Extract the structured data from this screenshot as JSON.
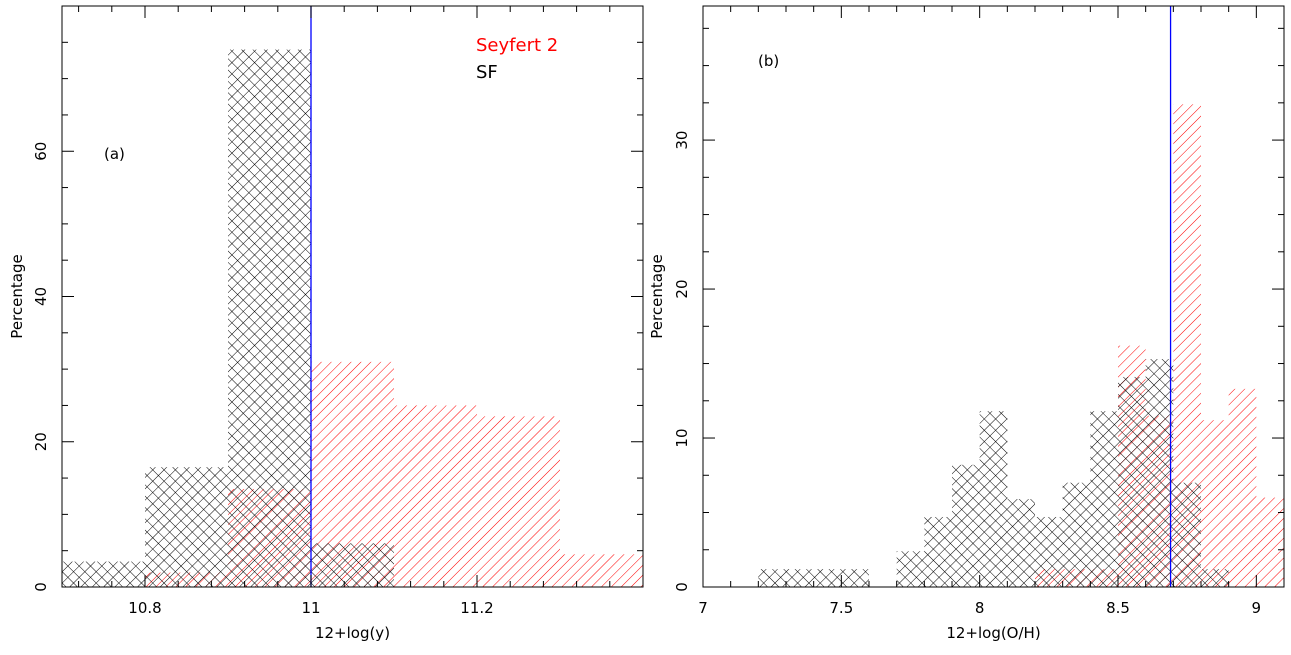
{
  "chart_data": [
    {
      "type": "bar",
      "panel_label": "(a)",
      "xlabel": "12+log(y)",
      "ylabel": "Percentage",
      "xlim": [
        10.7,
        11.4
      ],
      "ylim": [
        0,
        80
      ],
      "xticks": [
        10.8,
        11,
        11.2
      ],
      "xtick_labels": [
        "10.8",
        "11",
        "11.2"
      ],
      "yticks": [
        0,
        20,
        40,
        60
      ],
      "ytick_labels": [
        "0",
        "20",
        "40",
        "60"
      ],
      "vline": 11.0,
      "vline_color": "#0000ff",
      "grid": false,
      "legend_position": "top-right",
      "series": [
        {
          "name": "Seyfert 2",
          "color": "#ff0000",
          "pattern": "hatch",
          "bins": [
            {
              "x0": 10.8,
              "x1": 10.9,
              "value": 2
            },
            {
              "x0": 10.9,
              "x1": 11.0,
              "value": 13.5
            },
            {
              "x0": 11.0,
              "x1": 11.1,
              "value": 31
            },
            {
              "x0": 11.1,
              "x1": 11.2,
              "value": 25
            },
            {
              "x0": 11.2,
              "x1": 11.3,
              "value": 23.5
            },
            {
              "x0": 11.3,
              "x1": 11.4,
              "value": 4.5
            }
          ]
        },
        {
          "name": "SF",
          "color": "#000000",
          "pattern": "crosshatch",
          "bins": [
            {
              "x0": 10.7,
              "x1": 10.8,
              "value": 3.5
            },
            {
              "x0": 10.8,
              "x1": 10.9,
              "value": 16.5
            },
            {
              "x0": 10.9,
              "x1": 11.0,
              "value": 74
            },
            {
              "x0": 11.0,
              "x1": 11.1,
              "value": 6
            }
          ]
        }
      ]
    },
    {
      "type": "bar",
      "panel_label": "(b)",
      "xlabel": "12+log(O/H)",
      "ylabel": "Percentage",
      "xlim": [
        7.0,
        9.1
      ],
      "ylim": [
        0,
        39
      ],
      "xticks": [
        7,
        7.5,
        8,
        8.5,
        9
      ],
      "xtick_labels": [
        "7",
        "7.5",
        "8",
        "8.5",
        "9"
      ],
      "yticks": [
        0,
        10,
        20,
        30
      ],
      "ytick_labels": [
        "0",
        "10",
        "20",
        "30"
      ],
      "vline": 8.69,
      "vline_color": "#0000ff",
      "grid": false,
      "series": [
        {
          "name": "Seyfert 2",
          "color": "#ff0000",
          "pattern": "hatch",
          "bins": [
            {
              "x0": 8.2,
              "x1": 8.5,
              "value": 1.2
            },
            {
              "x0": 8.5,
              "x1": 8.6,
              "value": 16.2
            },
            {
              "x0": 8.6,
              "x1": 8.7,
              "value": 11.5
            },
            {
              "x0": 8.7,
              "x1": 8.8,
              "value": 32.4
            },
            {
              "x0": 8.8,
              "x1": 8.9,
              "value": 11.2
            },
            {
              "x0": 8.9,
              "x1": 9.0,
              "value": 13.3
            },
            {
              "x0": 9.0,
              "x1": 9.1,
              "value": 6.0
            }
          ]
        },
        {
          "name": "SF",
          "color": "#000000",
          "pattern": "crosshatch",
          "bins": [
            {
              "x0": 7.2,
              "x1": 7.6,
              "value": 1.2
            },
            {
              "x0": 7.7,
              "x1": 7.8,
              "value": 2.4
            },
            {
              "x0": 7.8,
              "x1": 7.9,
              "value": 4.7
            },
            {
              "x0": 7.9,
              "x1": 8.0,
              "value": 8.2
            },
            {
              "x0": 8.0,
              "x1": 8.1,
              "value": 11.8
            },
            {
              "x0": 8.1,
              "x1": 8.2,
              "value": 5.9
            },
            {
              "x0": 8.2,
              "x1": 8.3,
              "value": 4.7
            },
            {
              "x0": 8.3,
              "x1": 8.4,
              "value": 7.0
            },
            {
              "x0": 8.4,
              "x1": 8.5,
              "value": 11.8
            },
            {
              "x0": 8.5,
              "x1": 8.6,
              "value": 14.1
            },
            {
              "x0": 8.6,
              "x1": 8.7,
              "value": 15.3
            },
            {
              "x0": 8.7,
              "x1": 8.8,
              "value": 7.0
            },
            {
              "x0": 8.8,
              "x1": 8.9,
              "value": 1.2
            }
          ]
        }
      ]
    }
  ]
}
